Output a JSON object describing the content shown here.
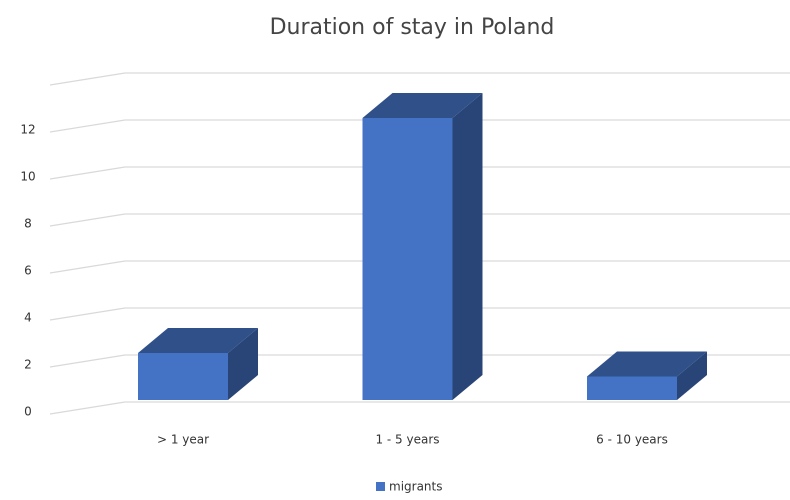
{
  "chart_data": {
    "type": "bar",
    "title": "Duration of stay in Poland",
    "categories": [
      "> 1 year",
      "1 - 5 years",
      "6 - 10 years"
    ],
    "series": [
      {
        "name": "migrants",
        "color": "#4472c4",
        "values": [
          2,
          12,
          1
        ]
      }
    ],
    "ylim": [
      0,
      14
    ],
    "yticks": [
      0,
      2,
      4,
      6,
      8,
      10,
      12
    ],
    "grid": true
  }
}
